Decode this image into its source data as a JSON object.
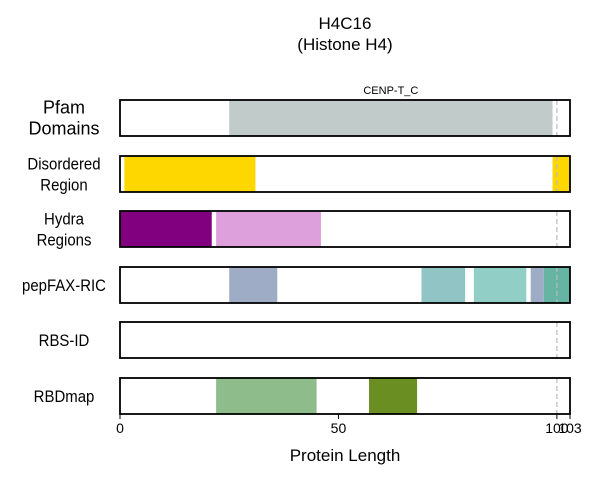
{
  "chart_data": {
    "type": "bar",
    "title_lines": [
      "H4C16",
      "(Histone H4)"
    ],
    "xlabel": "Protein Length",
    "xlim": [
      0,
      103
    ],
    "xticks": [
      0,
      50,
      100,
      103
    ],
    "reference_lines": [
      100
    ],
    "tracks": [
      {
        "label_lines": [
          "Pfam",
          "Domains"
        ],
        "segments": [
          {
            "start": 25,
            "end": 99,
            "color": "#c1cbc9",
            "label": "CENP-T_C"
          }
        ]
      },
      {
        "label_lines": [
          "Disordered",
          "Region"
        ],
        "segments": [
          {
            "start": 1,
            "end": 31,
            "color": "#ffd700",
            "label": ""
          },
          {
            "start": 99,
            "end": 103,
            "color": "#ffd700",
            "label": ""
          }
        ]
      },
      {
        "label_lines": [
          "Hydra",
          "Regions"
        ],
        "segments": [
          {
            "start": 0,
            "end": 21,
            "color": "#800080",
            "label": ""
          },
          {
            "start": 22,
            "end": 46,
            "color": "#dda0dd",
            "label": ""
          }
        ]
      },
      {
        "label_lines": [
          "pepFAX-RIC"
        ],
        "segments": [
          {
            "start": 25,
            "end": 36,
            "color": "#9eadc5",
            "label": ""
          },
          {
            "start": 69,
            "end": 79,
            "color": "#91c4c4",
            "label": ""
          },
          {
            "start": 81,
            "end": 93,
            "color": "#91cfc6",
            "label": ""
          },
          {
            "start": 94,
            "end": 97,
            "color": "#9eadc5",
            "label": ""
          },
          {
            "start": 97,
            "end": 103,
            "color": "#66b4a3",
            "label": ""
          }
        ]
      },
      {
        "label_lines": [
          "RBS-ID"
        ],
        "segments": []
      },
      {
        "label_lines": [
          "RBDmap"
        ],
        "segments": [
          {
            "start": 22,
            "end": 45,
            "color": "#8fbc8b",
            "label": ""
          },
          {
            "start": 57,
            "end": 68,
            "color": "#6b8e23",
            "label": ""
          }
        ]
      }
    ]
  }
}
